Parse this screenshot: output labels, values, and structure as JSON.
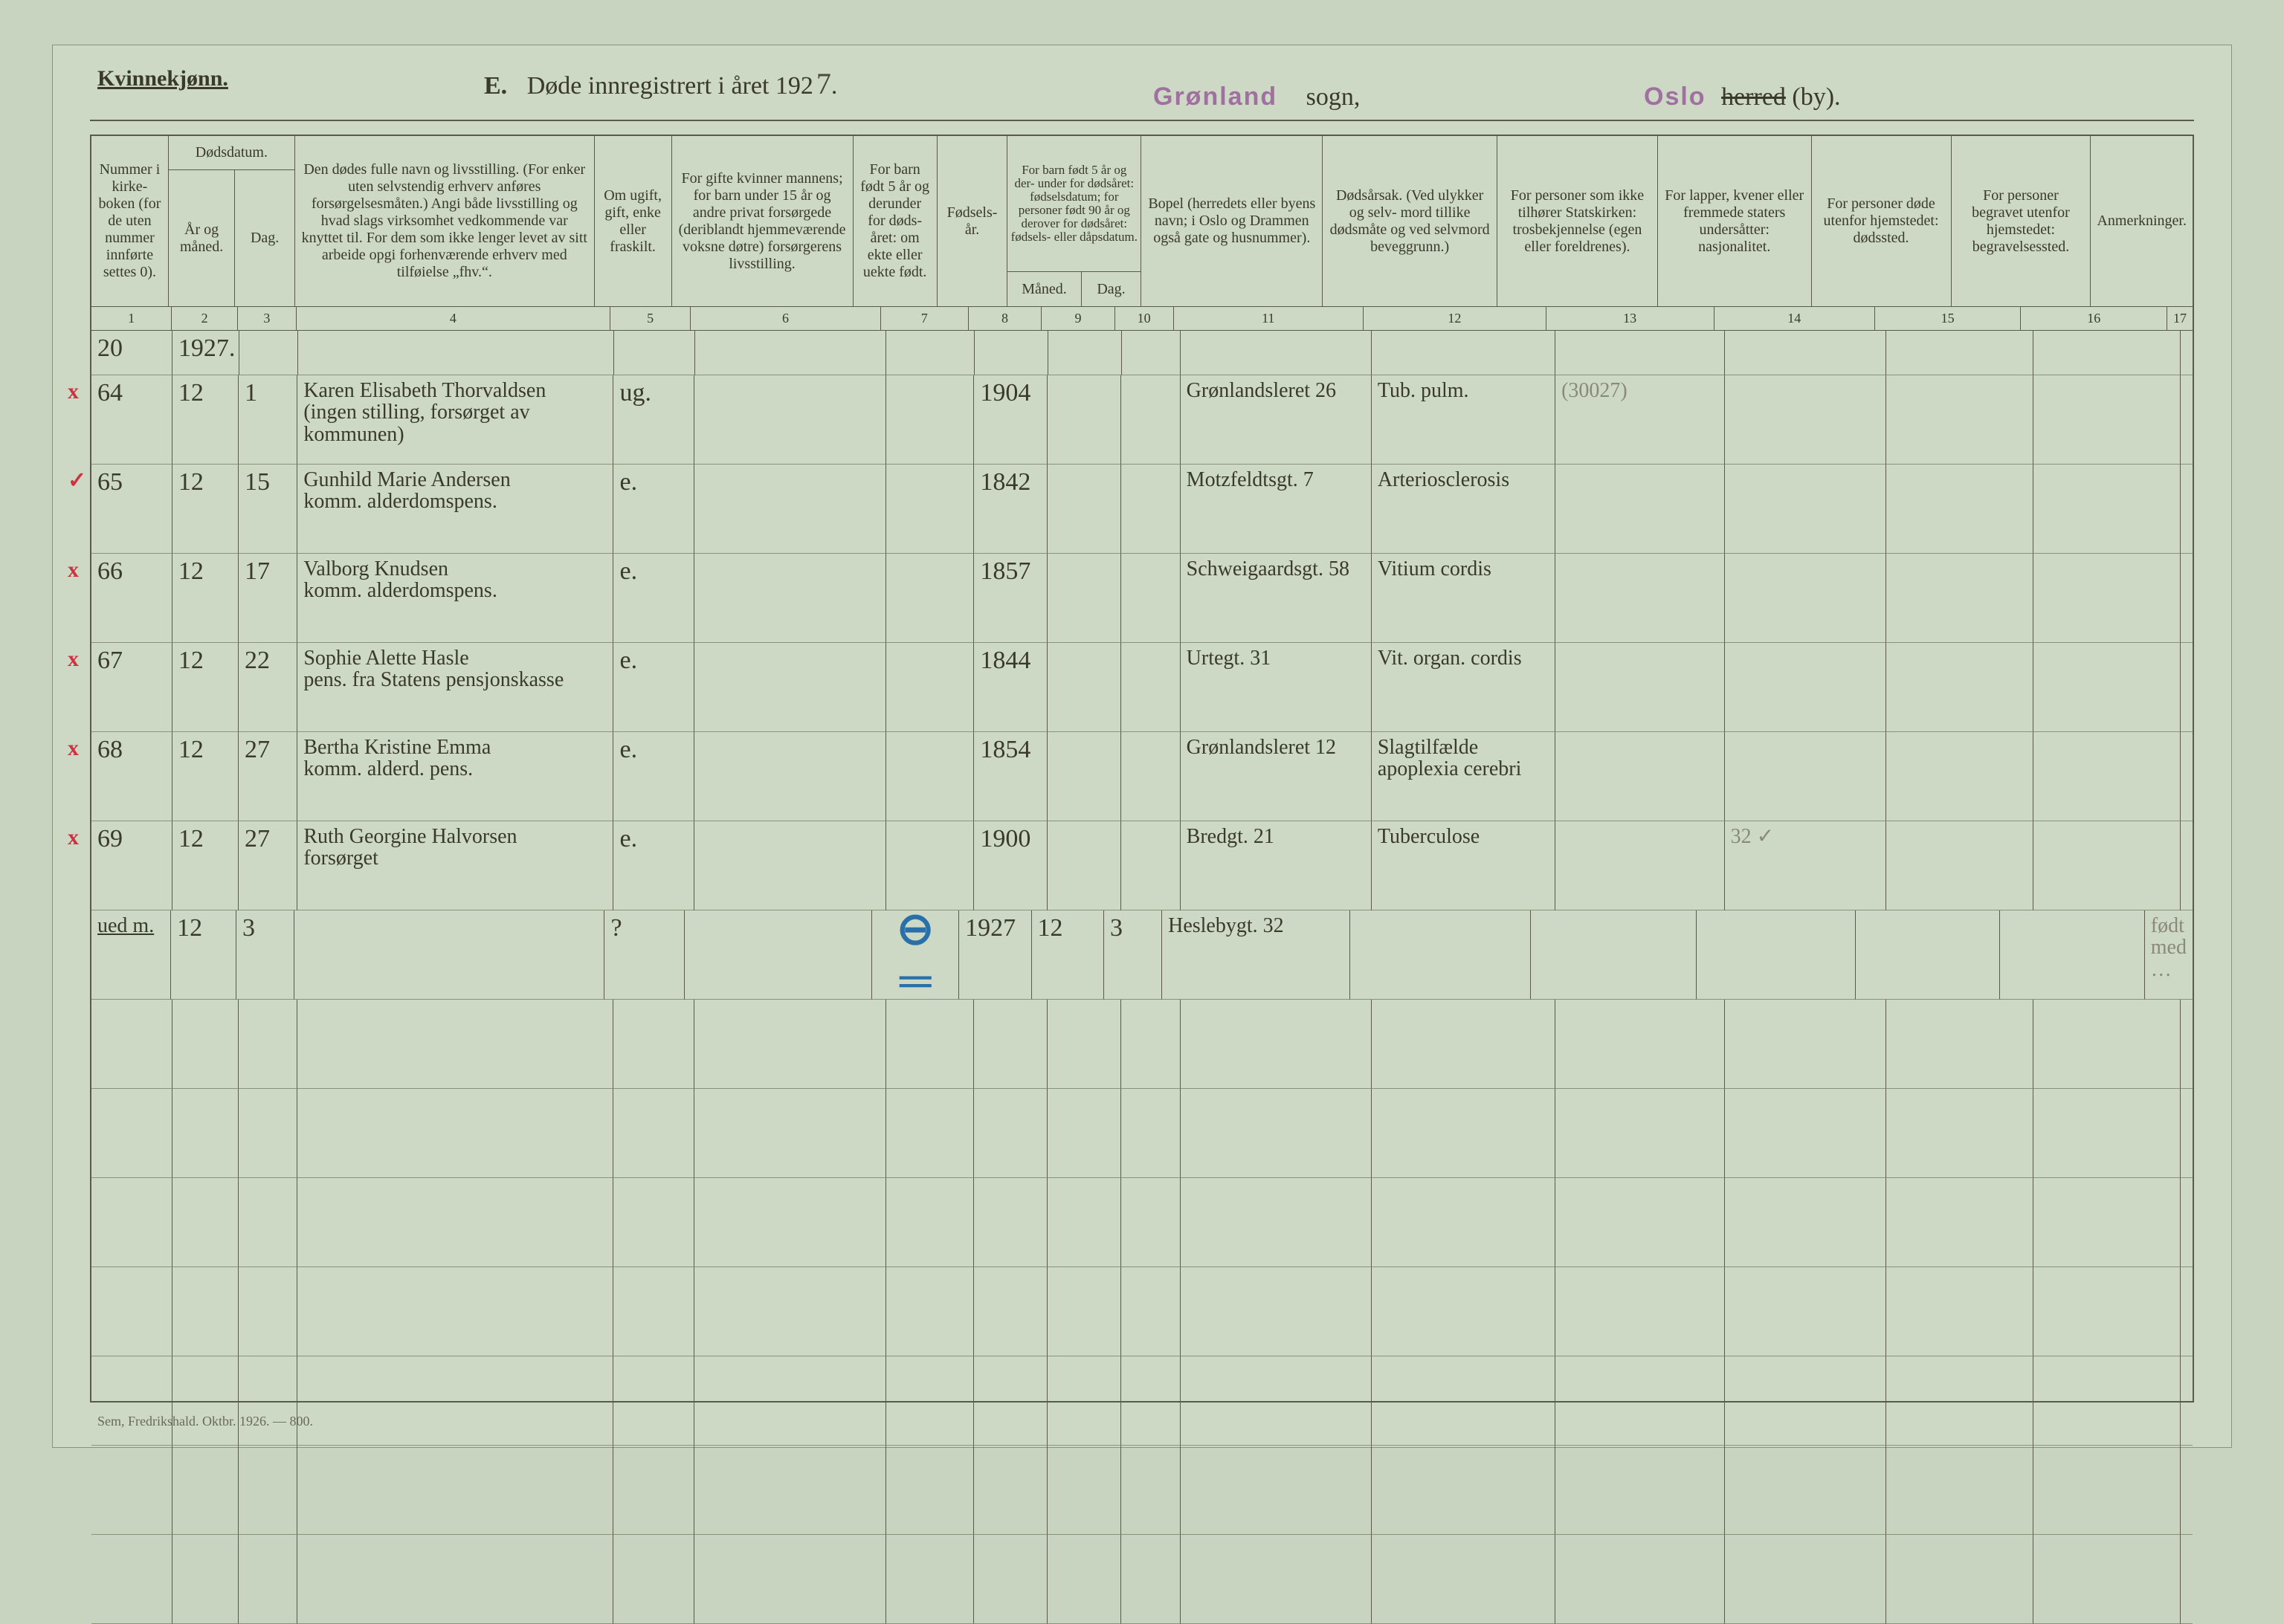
{
  "header": {
    "corner": "Kvinnekjønn.",
    "section_letter": "E.",
    "title_prefix": "Døde innregistrert i året 192",
    "year_digit": "7",
    "title_suffix": ".",
    "sogn_stamp": "Grønland",
    "sogn_label": "sogn,",
    "by_stamp": "Oslo",
    "herred_strike": "herred",
    "by_paren": "(by)."
  },
  "columns": {
    "c1": "Nummer i kirke- boken (for de uten nummer innførte settes 0).",
    "c2_parent": "Dødsdatum.",
    "c2": "År og måned.",
    "c3": "Dag.",
    "c4": "Den dødes fulle navn og livsstilling. (For enker uten selvstendig erhverv anføres forsørgelsesmåten.) Angi både livsstilling og hvad slags virksomhet vedkommende var knyttet til. For dem som ikke lenger levet av sitt arbeide opgi forhenværende erhverv med tilføielse „fhv.“.",
    "c5": "Om ugift, gift, enke eller fraskilt.",
    "c6": "For gifte kvinner mannens; for barn under 15 år og andre privat forsørgede (deriblandt hjemmeværende voksne døtre) forsørgerens livsstilling.",
    "c7": "For barn født 5 år og derunder for døds- året: om ekte eller uekte født.",
    "c8": "Fødsels- år.",
    "c9_parent": "For barn født 5 år og der- under for dødsåret: fødselsdatum; for personer født 90 år og derover for dødsåret: fødsels- eller dåpsdatum.",
    "c9": "Måned.",
    "c10": "Dag.",
    "c11": "Bopel (herredets eller byens navn; i Oslo og Drammen også gate og husnummer).",
    "c12": "Dødsårsak. (Ved ulykker og selv- mord tillike dødsmåte og ved selvmord beveggrunn.)",
    "c13": "For personer som ikke tilhører Statskirken: trosbekjennelse (egen eller foreldrenes).",
    "c14": "For lapper, kvener eller fremmede staters undersåtter: nasjonalitet.",
    "c15": "For personer døde utenfor hjemstedet: dødssted.",
    "c16": "For personer begravet utenfor hjemstedet: begravelsessted.",
    "c17": "Anmerkninger."
  },
  "colnums": [
    "1",
    "2",
    "3",
    "4",
    "5",
    "6",
    "7",
    "8",
    "9",
    "10",
    "11",
    "12",
    "13",
    "14",
    "15",
    "16",
    "17"
  ],
  "year_row": {
    "num": "20",
    "year": "1927."
  },
  "rows": [
    {
      "mark": "x",
      "num": "64",
      "ym": "12",
      "day": "1",
      "name": "Karen Elisabeth Thorvaldsen\n(ingen stilling, forsørget av kommunen)",
      "status": "ug.",
      "birth": "1904",
      "addr": "Grønlandsleret 26",
      "cause": "Tub. pulm.",
      "note13": "(30027)"
    },
    {
      "mark": "✓",
      "num": "65",
      "ym": "12",
      "day": "15",
      "name": "Gunhild Marie Andersen\nkomm. alderdomspens.",
      "status": "e.",
      "birth": "1842",
      "addr": "Motzfeldtsgt. 7",
      "cause": "Arteriosclerosis"
    },
    {
      "mark": "x",
      "num": "66",
      "ym": "12",
      "day": "17",
      "name": "Valborg Knudsen\nkomm. alderdomspens.",
      "status": "e.",
      "birth": "1857",
      "addr": "Schweigaardsgt. 58",
      "cause": "Vitium cordis"
    },
    {
      "mark": "x",
      "num": "67",
      "ym": "12",
      "day": "22",
      "name": "Sophie Alette Hasle\npens. fra Statens pensjonskasse",
      "status": "e.",
      "birth": "1844",
      "addr": "Urtegt. 31",
      "cause": "Vit. organ. cordis"
    },
    {
      "mark": "x",
      "num": "68",
      "ym": "12",
      "day": "27",
      "name": "Bertha Kristine Emma\nkomm. alderd. pens.",
      "status": "e.",
      "birth": "1854",
      "addr": "Grønlandsleret 12",
      "cause": "Slagtilfælde\napoplexia cerebri"
    },
    {
      "mark": "x",
      "num": "69",
      "ym": "12",
      "day": "27",
      "name": "Ruth Georgine Halvorsen\nforsørget",
      "status": "e.",
      "birth": "1900",
      "addr": "Bredgt. 21",
      "cause": "Tuberculose",
      "note14": "32 ✓"
    }
  ],
  "extra_row": {
    "label": "ued m.",
    "ym": "12",
    "day": "3",
    "status": "?",
    "c7_mark": "⊖  ═",
    "birth": "1927",
    "m": "12",
    "d": "3",
    "addr": "Heslebygt. 32",
    "anm": "født med …"
  },
  "footer": "Sem, Fredrikshald. Oktbr. 1926. — 800."
}
